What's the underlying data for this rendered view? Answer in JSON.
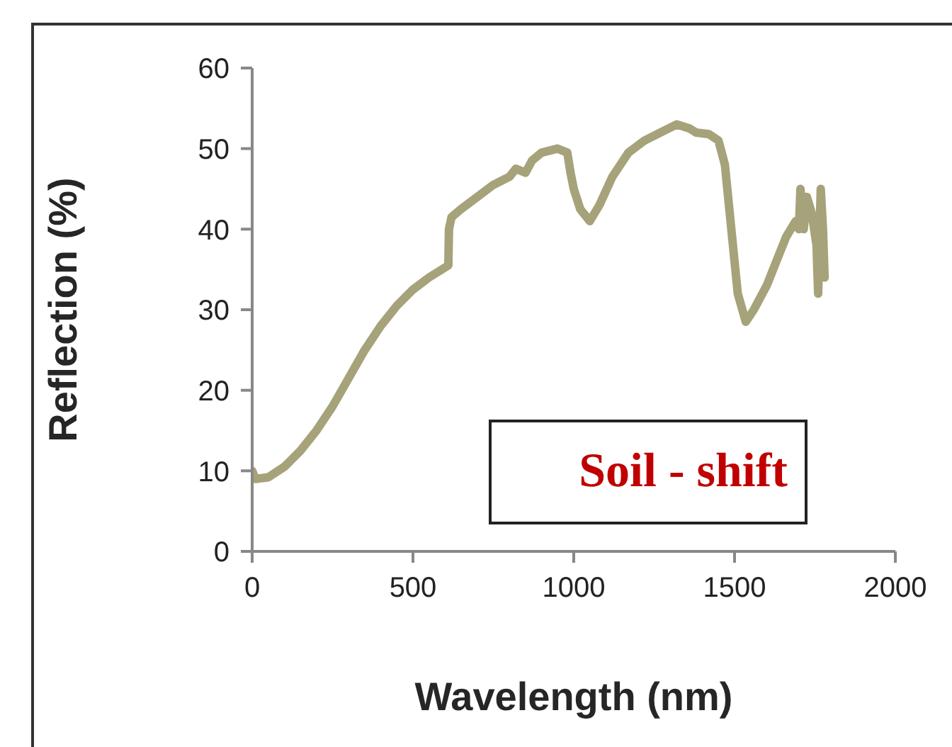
{
  "chart_data": {
    "type": "line",
    "xlabel": "Wavelength (nm)",
    "ylabel": "Reflection (%)",
    "x": [
      0,
      10,
      50,
      100,
      150,
      200,
      250,
      300,
      350,
      400,
      450,
      500,
      550,
      610,
      612,
      620,
      650,
      700,
      750,
      800,
      820,
      850,
      870,
      900,
      950,
      980,
      990,
      1000,
      1020,
      1050,
      1080,
      1120,
      1170,
      1220,
      1270,
      1320,
      1360,
      1380,
      1420,
      1450,
      1470,
      1490,
      1510,
      1535,
      1560,
      1600,
      1630,
      1660,
      1690,
      1700,
      1705,
      1715,
      1725,
      1740,
      1755,
      1760,
      1768,
      1775,
      1780
    ],
    "series": [
      {
        "color": "#a6a27a",
        "values": [
          10,
          9,
          9.2,
          10.5,
          12.5,
          15,
          18,
          21.5,
          25,
          28,
          30.5,
          32.5,
          34,
          35.5,
          40,
          41.5,
          42.5,
          44,
          45.5,
          46.5,
          47.5,
          47,
          48.5,
          49.5,
          50,
          49.5,
          47,
          45,
          42.5,
          41,
          43,
          46.5,
          49.5,
          51,
          52,
          53,
          52.5,
          52,
          51.8,
          51,
          48,
          40,
          32,
          28.5,
          30,
          33,
          36,
          39,
          41,
          40,
          45,
          40,
          44,
          42,
          38,
          32,
          45,
          40,
          34
        ]
      }
    ],
    "xlim": [
      0,
      2000
    ],
    "xticks": [
      0,
      500,
      1000,
      1500,
      2000
    ],
    "ylim": [
      0,
      60
    ],
    "yticks": [
      0,
      10,
      20,
      30,
      40,
      50,
      60
    ],
    "annotations": [
      "Soil - shift"
    ],
    "grid": false,
    "legend": false,
    "marker": "none"
  }
}
